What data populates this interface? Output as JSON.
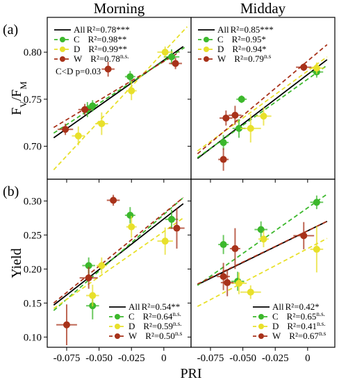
{
  "chart_data": [
    {
      "type": "scatter",
      "title": "Morning",
      "panel_label": "(a)",
      "ylabel": [
        "F",
        "V",
        "/F",
        "M"
      ],
      "annotation": "C<D p=0.03",
      "legend": "upper left",
      "xlim": [
        -0.09,
        0.021
      ],
      "ylim": [
        0.665,
        0.837
      ],
      "yticks": [
        {
          "value": 0.7,
          "label": "0.70"
        },
        {
          "value": 0.75,
          "label": "0.75"
        },
        {
          "value": 0.8,
          "label": "0.80"
        }
      ],
      "series": [
        {
          "color": "#3cb82c",
          "x": [
            -0.059,
            -0.055,
            -0.026,
            0.006
          ],
          "values": [
            0.739,
            0.743,
            0.774,
            0.795
          ],
          "xerr": [
            0.005,
            0.004,
            0.004,
            0.006
          ],
          "yerr": [
            0.008,
            0.006,
            0.006,
            0.008
          ]
        },
        {
          "color": "#e8e02a",
          "x": [
            -0.066,
            -0.048,
            -0.025,
            0.001
          ],
          "values": [
            0.711,
            0.724,
            0.759,
            0.8
          ],
          "xerr": [
            0.005,
            0.005,
            0.004,
            0.006
          ],
          "yerr": [
            0.01,
            0.012,
            0.01,
            0.006
          ]
        },
        {
          "color": "#a8321a",
          "x": [
            -0.076,
            -0.061,
            -0.043,
            0.009
          ],
          "values": [
            0.718,
            0.739,
            0.782,
            0.788
          ],
          "xerr": [
            0.006,
            0.005,
            0.005,
            0.005
          ],
          "yerr": [
            0.006,
            0.006,
            0.008,
            0.006
          ]
        }
      ],
      "fits": [
        {
          "name": "All",
          "stat": "R²=0.78",
          "sig": "***",
          "color": "#000000",
          "dash": false,
          "x": [
            -0.085,
            0.015
          ],
          "values": [
            0.709,
            0.806
          ]
        },
        {
          "name": "C",
          "stat": "R²=0.98",
          "sig": "**",
          "color": "#3cb82c",
          "dash": true,
          "x": [
            -0.085,
            0.016
          ],
          "values": [
            0.714,
            0.805
          ]
        },
        {
          "name": "D",
          "stat": "R²=0.99",
          "sig": "**",
          "color": "#e8e02a",
          "dash": true,
          "x": [
            -0.085,
            0.018
          ],
          "values": [
            0.675,
            0.827
          ]
        },
        {
          "name": "W",
          "stat": "R²=0.78",
          "sig": "n.s.",
          "color": "#a8321a",
          "dash": true,
          "x": [
            -0.085,
            0.012
          ],
          "values": [
            0.72,
            0.8
          ]
        }
      ]
    },
    {
      "type": "scatter",
      "title": "Midday",
      "legend": "upper left",
      "xlim": [
        -0.09,
        0.021
      ],
      "ylim": [
        0.665,
        0.837
      ],
      "series": [
        {
          "color": "#3cb82c",
          "x": [
            -0.065,
            -0.053,
            -0.051,
            0.007
          ],
          "values": [
            0.704,
            0.719,
            0.75,
            0.779
          ],
          "xerr": [
            0.004,
            0.005,
            0.004,
            0.005
          ],
          "yerr": [
            0.008,
            0.01,
            0.004,
            0.006
          ]
        },
        {
          "color": "#e8e02a",
          "x": [
            -0.044,
            -0.034,
            0.007
          ],
          "values": [
            0.719,
            0.732,
            0.783
          ],
          "xerr": [
            0.008,
            0.006,
            0.006
          ],
          "yerr": [
            0.015,
            0.01,
            0.006
          ]
        },
        {
          "color": "#a8321a",
          "x": [
            -0.063,
            -0.056,
            -0.065,
            -0.003
          ],
          "values": [
            0.73,
            0.733,
            0.686,
            0.784
          ],
          "xerr": [
            0.005,
            0.005,
            0.004,
            0.006
          ],
          "yerr": [
            0.008,
            0.01,
            0.012,
            0.004
          ]
        }
      ],
      "fits": [
        {
          "name": "All",
          "stat": "R²=0.85",
          "sig": "***",
          "color": "#000000",
          "dash": false,
          "x": [
            -0.085,
            0.015
          ],
          "values": [
            0.687,
            0.792
          ]
        },
        {
          "name": "C",
          "stat": "R²=0.95",
          "sig": "*",
          "color": "#3cb82c",
          "dash": true,
          "x": [
            -0.085,
            0.015
          ],
          "values": [
            0.688,
            0.786
          ]
        },
        {
          "name": "D",
          "stat": "R²=0.94",
          "sig": "*",
          "color": "#e8e02a",
          "dash": true,
          "x": [
            -0.085,
            0.015
          ],
          "values": [
            0.695,
            0.795
          ]
        },
        {
          "name": "W",
          "stat": "R²=0.79",
          "sig": "n.s",
          "color": "#a8321a",
          "dash": true,
          "x": [
            -0.085,
            0.015
          ],
          "values": [
            0.692,
            0.808
          ]
        }
      ]
    },
    {
      "type": "scatter",
      "panel_label": "(b)",
      "ylabel": [
        "Yield"
      ],
      "xlabel": "PRI",
      "legend": "lower right",
      "xlim": [
        -0.09,
        0.021
      ],
      "ylim": [
        0.085,
        0.332
      ],
      "xticks": [
        {
          "value": -0.075,
          "label": "-0.075"
        },
        {
          "value": -0.05,
          "label": "-0.050"
        },
        {
          "value": -0.025,
          "label": "-0.025"
        },
        0
      ],
      "yticks": [
        {
          "value": 0.1,
          "label": "0.10"
        },
        {
          "value": 0.15,
          "label": "0.15"
        },
        {
          "value": 0.2,
          "label": "0.20"
        },
        {
          "value": 0.25,
          "label": "0.25"
        },
        {
          "value": 0.3,
          "label": "0.30"
        }
      ],
      "series": [
        {
          "color": "#3cb82c",
          "x": [
            -0.058,
            -0.055,
            -0.026,
            0.006
          ],
          "values": [
            0.205,
            0.146,
            0.279,
            0.273
          ],
          "xerr": [
            0.005,
            0.005,
            0.004,
            0.005
          ],
          "yerr": [
            0.012,
            0.02,
            0.012,
            0.014
          ]
        },
        {
          "color": "#e8e02a",
          "x": [
            -0.055,
            -0.048,
            -0.025,
            0.001
          ],
          "values": [
            0.161,
            0.205,
            0.262,
            0.241
          ],
          "xerr": [
            0.005,
            0.004,
            0.004,
            0.006
          ],
          "yerr": [
            0.016,
            0.012,
            0.016,
            0.02
          ]
        },
        {
          "color": "#a8321a",
          "x": [
            -0.075,
            -0.058,
            -0.039,
            0.01
          ],
          "values": [
            0.118,
            0.187,
            0.301,
            0.26
          ],
          "xerr": [
            0.008,
            0.007,
            0.005,
            0.006
          ],
          "yerr": [
            0.03,
            0.016,
            0.008,
            0.03
          ]
        }
      ],
      "fits": [
        {
          "name": "All",
          "stat": "R²=0.54",
          "sig": "**",
          "color": "#000000",
          "dash": false,
          "x": [
            -0.085,
            0.015
          ],
          "values": [
            0.147,
            0.296
          ]
        },
        {
          "name": "C",
          "stat": "R²=0.64",
          "sig": "n.s.",
          "color": "#3cb82c",
          "dash": true,
          "x": [
            -0.085,
            0.015
          ],
          "values": [
            0.139,
            0.305
          ]
        },
        {
          "name": "D",
          "stat": "R²=0.59",
          "sig": "n.s.",
          "color": "#e8e02a",
          "dash": true,
          "x": [
            -0.085,
            0.015
          ],
          "values": [
            0.142,
            0.275
          ]
        },
        {
          "name": "W",
          "stat": "R²=0.50",
          "sig": "n.s",
          "color": "#a8321a",
          "dash": true,
          "x": [
            -0.085,
            0.015
          ],
          "values": [
            0.15,
            0.305
          ]
        }
      ]
    },
    {
      "type": "scatter",
      "legend": "lower right",
      "xlim": [
        -0.09,
        0.021
      ],
      "ylim": [
        0.085,
        0.332
      ],
      "xticks": [
        {
          "value": -0.075,
          "label": "-0.075"
        },
        {
          "value": -0.05,
          "label": "-0.050"
        },
        {
          "value": -0.025,
          "label": "-0.025"
        },
        0
      ],
      "series": [
        {
          "color": "#3cb82c",
          "x": [
            -0.065,
            -0.036,
            0.007,
            -0.054
          ],
          "values": [
            0.236,
            0.258,
            0.298,
            0.182
          ],
          "xerr": [
            0.004,
            0.005,
            0.005,
            0.005
          ],
          "yerr": [
            0.014,
            0.012,
            0.01,
            0.014
          ]
        },
        {
          "color": "#e8e02a",
          "x": [
            -0.034,
            0.007,
            -0.044,
            -0.053
          ],
          "values": [
            0.244,
            0.229,
            0.166,
            0.179
          ],
          "xerr": [
            0.004,
            0.005,
            0.008,
            0.006
          ],
          "yerr": [
            0.012,
            0.034,
            0.01,
            0.016
          ]
        },
        {
          "color": "#a8321a",
          "x": [
            -0.056,
            -0.065,
            -0.062,
            -0.003
          ],
          "values": [
            0.23,
            0.189,
            0.18,
            0.249
          ],
          "xerr": [
            0.004,
            0.005,
            0.005,
            0.008
          ],
          "yerr": [
            0.03,
            0.02,
            0.02,
            0.02
          ]
        }
      ],
      "fits": [
        {
          "name": "All",
          "stat": "R²=0.42",
          "sig": "*",
          "color": "#000000",
          "dash": false,
          "x": [
            -0.085,
            0.015
          ],
          "values": [
            0.177,
            0.27
          ]
        },
        {
          "name": "C",
          "stat": "R²=0.65",
          "sig": "n.s.",
          "color": "#3cb82c",
          "dash": true,
          "x": [
            -0.085,
            0.015
          ],
          "values": [
            0.176,
            0.31
          ]
        },
        {
          "name": "D",
          "stat": "R²=0.41",
          "sig": "n.s.",
          "color": "#e8e02a",
          "dash": true,
          "x": [
            -0.085,
            0.015
          ],
          "values": [
            0.145,
            0.245
          ]
        },
        {
          "name": "W",
          "stat": "R²=0.67",
          "sig": "n.s",
          "color": "#a8321a",
          "dash": true,
          "x": [
            -0.085,
            0.015
          ],
          "values": [
            0.178,
            0.27
          ]
        }
      ]
    }
  ]
}
